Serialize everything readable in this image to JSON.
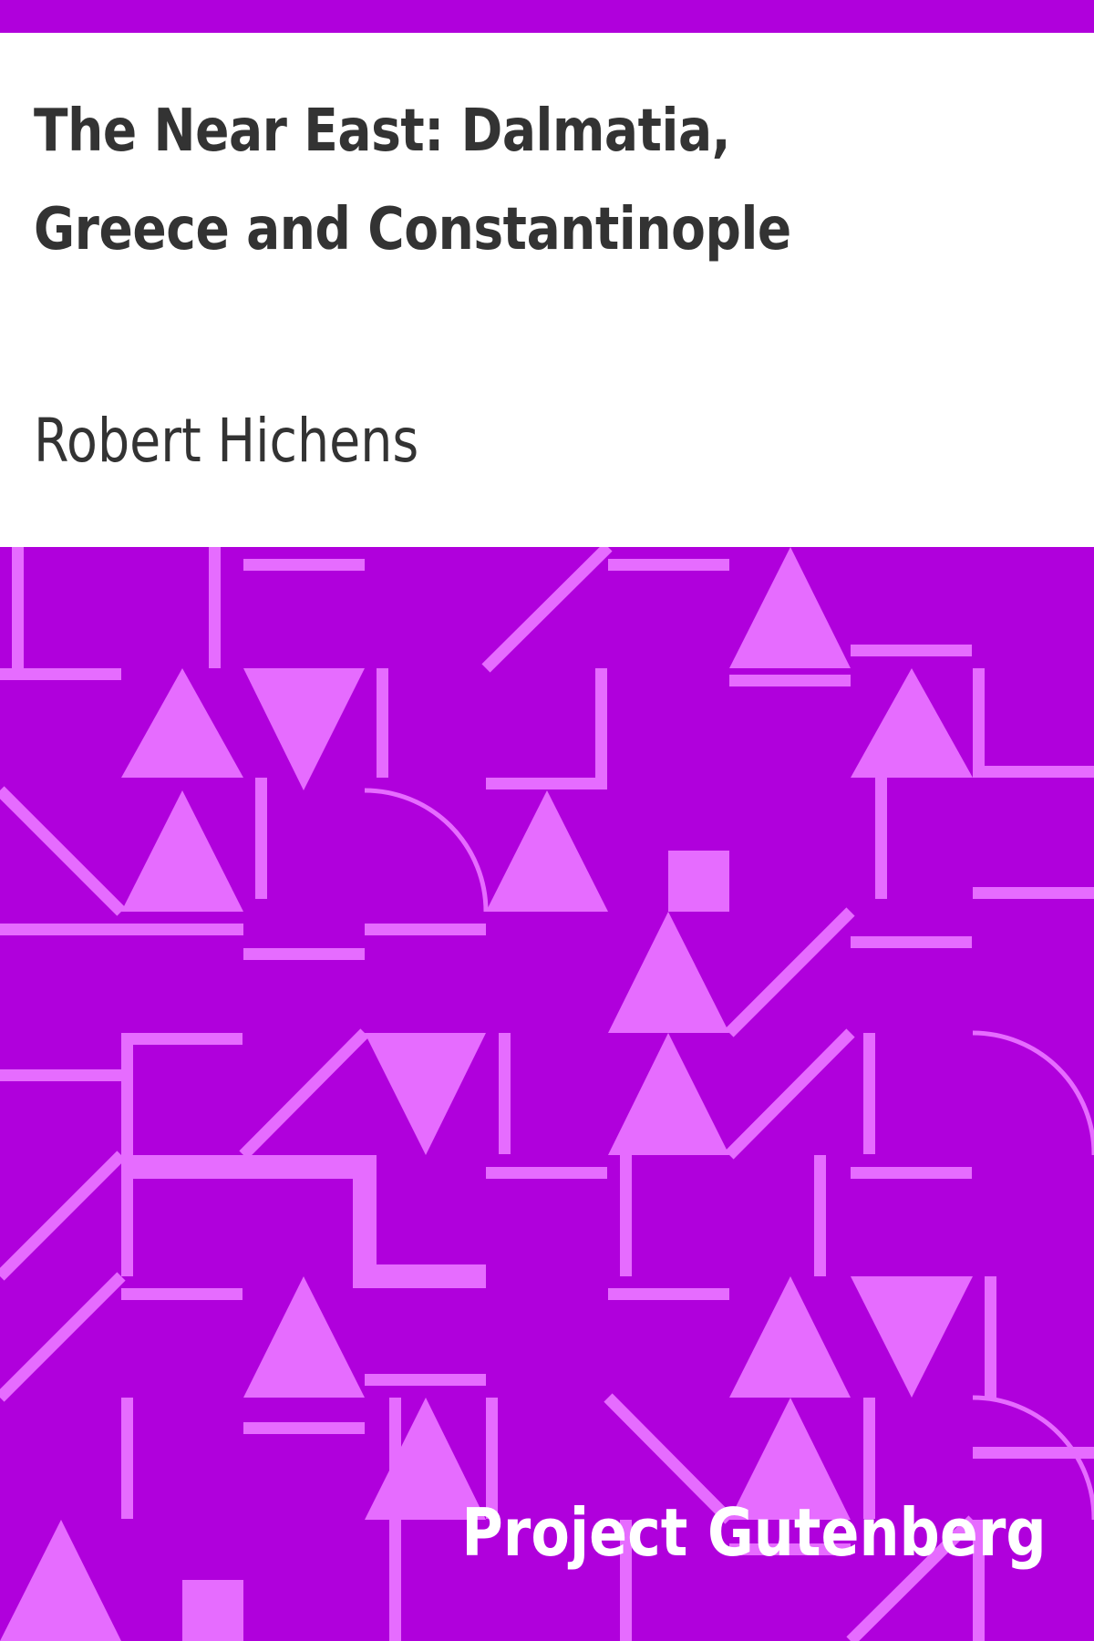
{
  "cover": {
    "title": "The Near East: Dalmatia, Greece and Constantinople",
    "author": "Robert Hichens",
    "publisher": "Project Gutenberg"
  },
  "colors": {
    "background": "#b000dc",
    "pattern": "#e66cff",
    "title_panel": "#ffffff",
    "text": "#333333",
    "publisher_text": "#ffffff"
  }
}
